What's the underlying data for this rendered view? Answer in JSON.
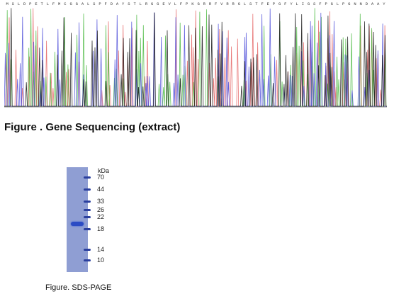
{
  "sequencing": {
    "title": "Figure . Gene Sequencing (extract)",
    "residue_string": "MSLDPETLFMCGGALSPFDAYSTLRGGEVLFPKGRRFVRRGLSTFEPGFYLIGSFPGLPGNNDAAY",
    "trace_colors": [
      "#e46060",
      "#49b83e",
      "#4a4ad8",
      "#111111"
    ]
  },
  "gel": {
    "unit_label": "kDa",
    "markers": [
      "70",
      "44",
      "33",
      "26",
      "22",
      "18",
      "14",
      "10"
    ],
    "caption": "Figure. SDS-PAGE",
    "lane_color": "#8f9ed3",
    "band_color": "#2b4bc4"
  }
}
